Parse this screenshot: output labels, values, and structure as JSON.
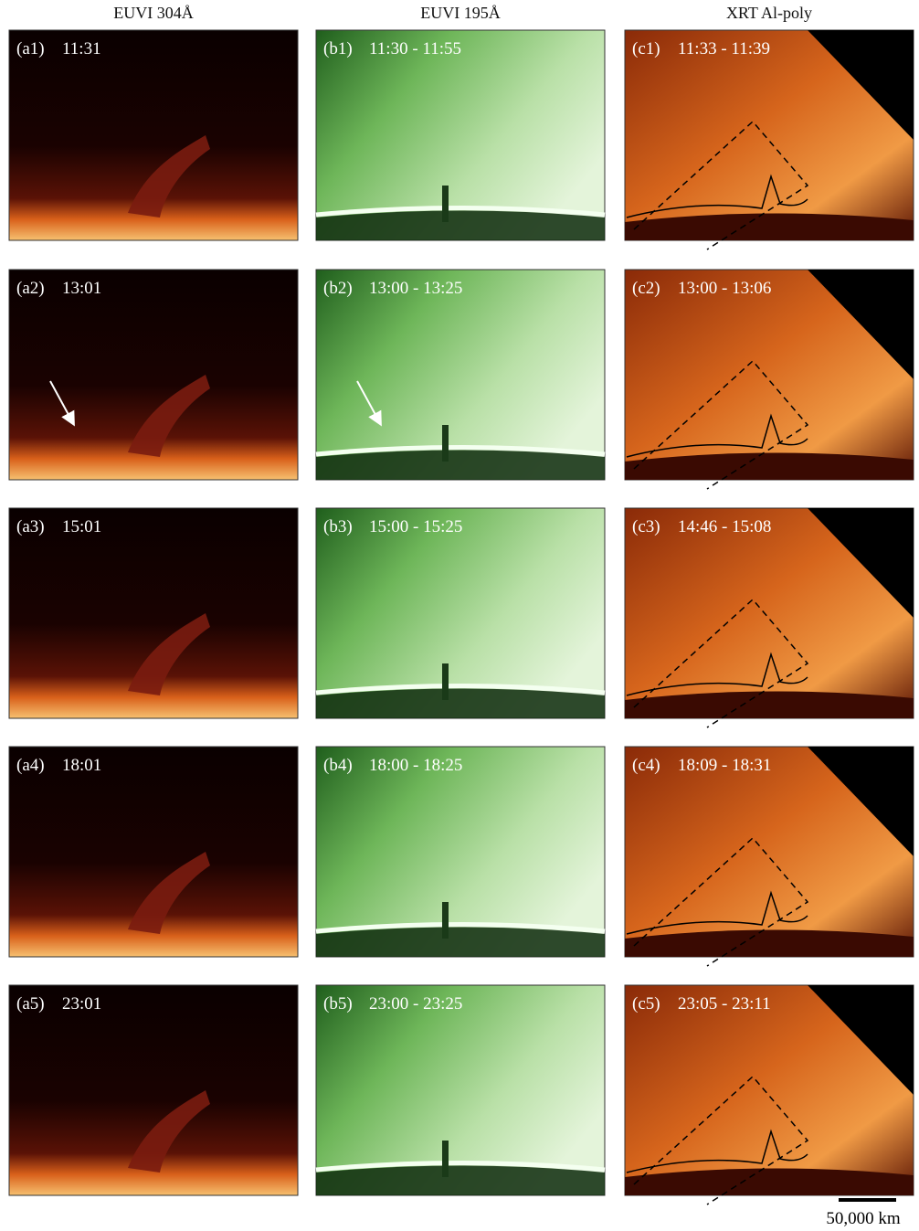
{
  "columns": [
    {
      "title": "EUVI 304Å",
      "panels": [
        {
          "label": "(a1)",
          "time": "11:31"
        },
        {
          "label": "(a2)",
          "time": "13:01"
        },
        {
          "label": "(a3)",
          "time": "15:01"
        },
        {
          "label": "(a4)",
          "time": "18:01"
        },
        {
          "label": "(a5)",
          "time": "23:01"
        }
      ]
    },
    {
      "title": "EUVI 195Å",
      "panels": [
        {
          "label": "(b1)",
          "time": "11:30 - 11:55"
        },
        {
          "label": "(b2)",
          "time": "13:00 - 13:25"
        },
        {
          "label": "(b3)",
          "time": "15:00 - 15:25"
        },
        {
          "label": "(b4)",
          "time": "18:00 - 18:25"
        },
        {
          "label": "(b5)",
          "time": "23:00 - 23:25"
        }
      ]
    },
    {
      "title": "XRT Al-poly",
      "panels": [
        {
          "label": "(c1)",
          "time": "11:33 - 11:39"
        },
        {
          "label": "(c2)",
          "time": "13:00 - 13:06"
        },
        {
          "label": "(c3)",
          "time": "14:46 - 15:08"
        },
        {
          "label": "(c4)",
          "time": "18:09 - 18:31"
        },
        {
          "label": "(c5)",
          "time": "23:05 - 23:11"
        }
      ]
    }
  ],
  "scale_bar": "50,000 km"
}
